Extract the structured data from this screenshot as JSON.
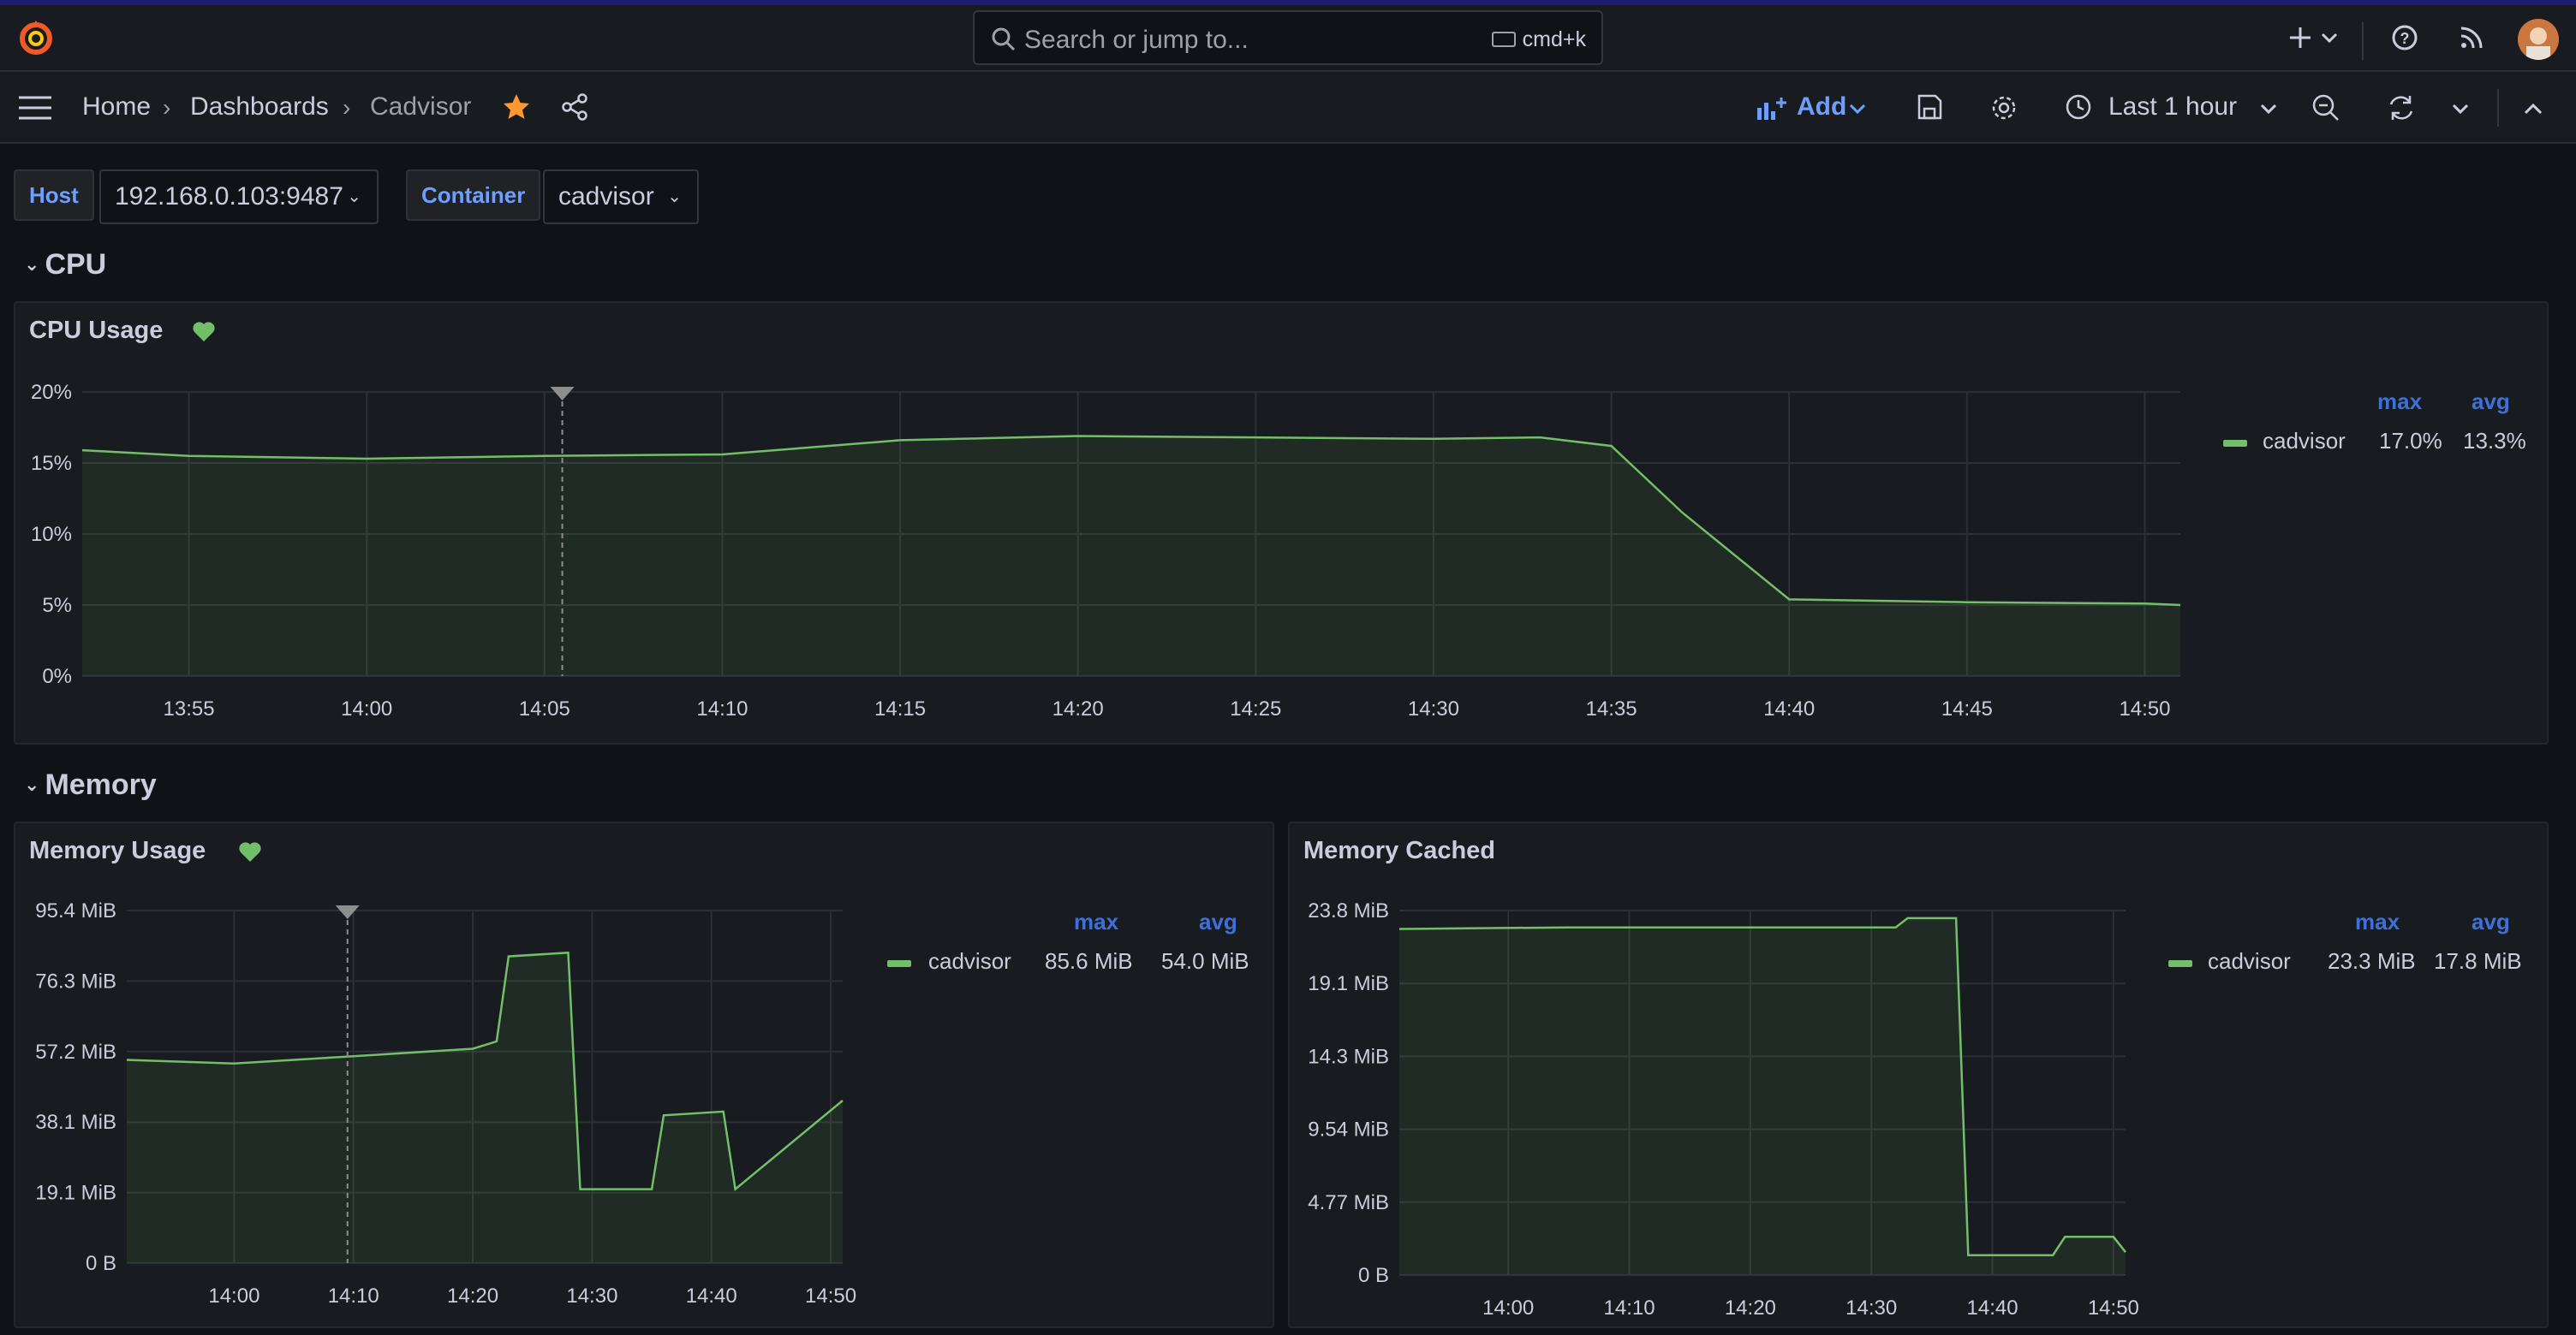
{
  "header": {
    "search_placeholder": "Search or jump to...",
    "search_shortcut": "cmd+k"
  },
  "breadcrumb": {
    "home": "Home",
    "dashboards": "Dashboards",
    "current": "Cadvisor"
  },
  "toolbar": {
    "add_label": "Add",
    "time_range": "Last 1 hour"
  },
  "variables": [
    {
      "label": "Host",
      "value": "192.168.0.103:9487"
    },
    {
      "label": "Container",
      "value": "cadvisor"
    }
  ],
  "rows": {
    "cpu": "CPU",
    "memory": "Memory"
  },
  "panels": {
    "cpu_usage": {
      "title": "CPU Usage",
      "legend": {
        "max_label": "max",
        "avg_label": "avg",
        "series": "cadvisor",
        "max": "17.0%",
        "avg": "13.3%"
      }
    },
    "memory_usage": {
      "title": "Memory Usage",
      "legend": {
        "max_label": "max",
        "avg_label": "avg",
        "series": "cadvisor",
        "max": "85.6 MiB",
        "avg": "54.0 MiB"
      }
    },
    "memory_cached": {
      "title": "Memory Cached",
      "legend": {
        "max_label": "max",
        "avg_label": "avg",
        "series": "cadvisor",
        "max": "23.3 MiB",
        "avg": "17.8 MiB"
      }
    }
  },
  "colors": {
    "series": "#73bf69",
    "accent": "#6e9fff",
    "star": "#ff9830",
    "heart": "#73bf69"
  },
  "chart_data": [
    {
      "type": "area",
      "title": "CPU Usage",
      "series_name": "cadvisor",
      "y_ticks": [
        "20%",
        "15%",
        "10%",
        "5%",
        "0%"
      ],
      "ylim": [
        0,
        20
      ],
      "x_ticks": [
        "13:55",
        "14:00",
        "14:05",
        "14:10",
        "14:15",
        "14:20",
        "14:25",
        "14:30",
        "14:35",
        "14:40",
        "14:45",
        "14:50"
      ],
      "x_minutes": [
        52,
        55,
        60,
        65,
        70,
        75,
        80,
        85,
        90,
        93,
        95,
        97,
        100,
        105,
        110,
        111
      ],
      "values": [
        15.9,
        15.5,
        15.3,
        15.5,
        15.6,
        16.6,
        16.9,
        16.8,
        16.7,
        16.8,
        16.2,
        11.5,
        5.4,
        5.2,
        5.1,
        5.0
      ]
    },
    {
      "type": "area",
      "title": "Memory Usage",
      "series_name": "cadvisor",
      "y_ticks": [
        "95.4 MiB",
        "76.3 MiB",
        "57.2 MiB",
        "38.1 MiB",
        "19.1 MiB",
        "0 B"
      ],
      "ylim": [
        0,
        95.4
      ],
      "x_ticks": [
        "14:00",
        "14:10",
        "14:20",
        "14:30",
        "14:40",
        "14:50"
      ],
      "x_minutes": [
        51,
        60,
        70,
        80,
        82,
        83,
        88,
        89,
        95,
        96,
        101,
        102,
        111
      ],
      "values": [
        55,
        54,
        56,
        58,
        60,
        83,
        84,
        20,
        20,
        40,
        41,
        20,
        44
      ]
    },
    {
      "type": "area",
      "title": "Memory Cached",
      "series_name": "cadvisor",
      "y_ticks": [
        "23.8 MiB",
        "19.1 MiB",
        "14.3 MiB",
        "9.54 MiB",
        "4.77 MiB",
        "0 B"
      ],
      "ylim": [
        0,
        23.8
      ],
      "x_ticks": [
        "14:00",
        "14:10",
        "14:20",
        "14:30",
        "14:40",
        "14:50"
      ],
      "x_minutes": [
        51,
        65,
        92,
        93,
        97,
        98,
        105,
        106,
        110,
        111
      ],
      "values": [
        22.6,
        22.7,
        22.7,
        23.3,
        23.3,
        1.3,
        1.3,
        2.5,
        2.5,
        1.5
      ]
    }
  ]
}
